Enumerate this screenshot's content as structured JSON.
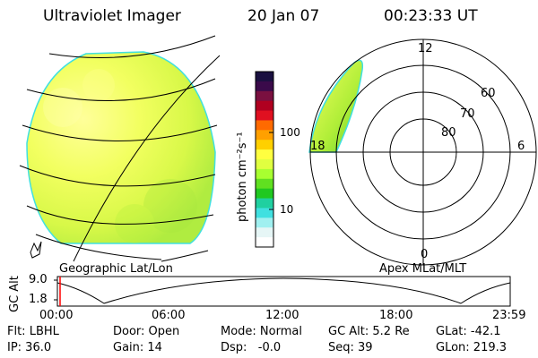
{
  "header": {
    "instrument": "Ultraviolet Imager",
    "date": "20 Jan 07",
    "time": "00:23:33 UT"
  },
  "left_panel": {
    "label": "Geographic Lat/Lon"
  },
  "colorbar": {
    "unit_label": "photon cm⁻²s⁻¹",
    "ticks": [
      "100",
      "10"
    ],
    "colors": [
      "#1a1040",
      "#3a0a4a",
      "#7a1040",
      "#b00020",
      "#e01020",
      "#ff6a00",
      "#ffa000",
      "#ffd000",
      "#ffff40",
      "#e0ff40",
      "#a8ff30",
      "#60e020",
      "#20c820",
      "#20d0a0",
      "#40e0e0",
      "#a0f0f0",
      "#e6f6f6",
      "#ffffff"
    ]
  },
  "right_panel": {
    "label": "Apex MLat/MLT",
    "mlt_labels": {
      "top": "12",
      "right": "6",
      "bottom": "0",
      "left": "18"
    },
    "lat_labels": [
      "60",
      "70",
      "80"
    ]
  },
  "altitude_track": {
    "ylabel": "GC Alt",
    "yticks": [
      "9.0",
      "1.8"
    ],
    "xticks": [
      "00:00",
      "06:00",
      "12:00",
      "18:00",
      "23:59"
    ]
  },
  "info": {
    "row1": [
      "Flt: LBHL",
      "Door: Open",
      "Mode: Normal",
      "GC Alt: 5.2 Re",
      "GLat: -42.1"
    ],
    "row2": [
      "IP: 36.0",
      "Gain: 14",
      "Dsp:   -0.0",
      "Seq: 39",
      "GLon: 219.3"
    ]
  },
  "accent": {
    "image_fill": "#e6ff50",
    "current_time_marker": "#ff0000"
  }
}
